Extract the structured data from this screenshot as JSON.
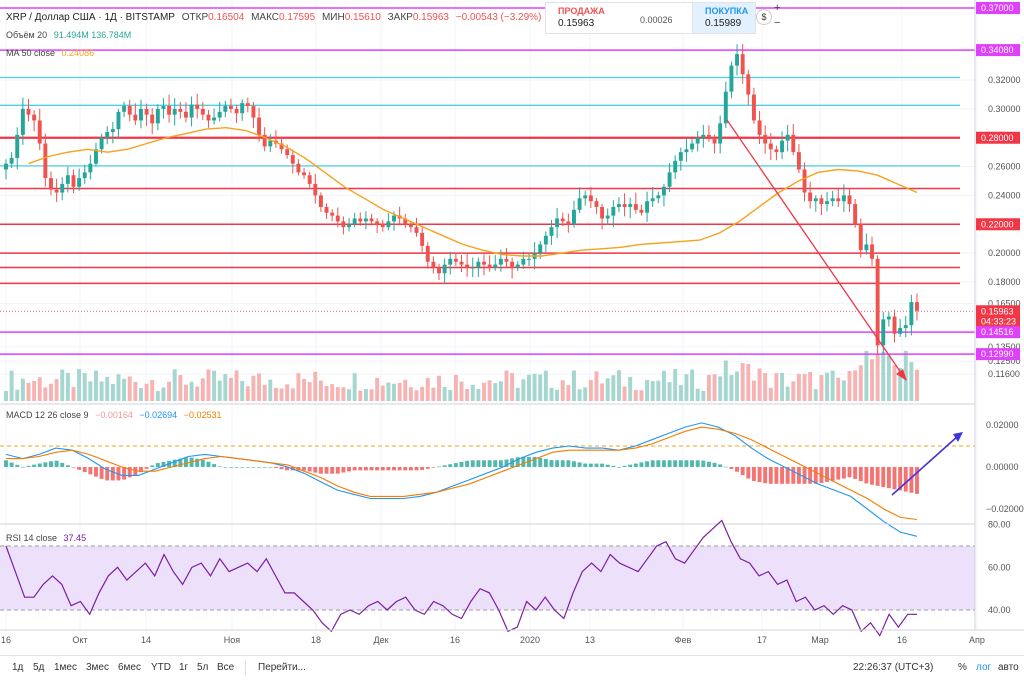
{
  "header": {
    "symbol": "XRP / Доллар США · 1Д · BITSTAMP",
    "open_label": "ОТКР",
    "open": "0.16504",
    "high_label": "МАКС",
    "high": "0.17595",
    "low_label": "МИН",
    "low": "0.15610",
    "close_label": "ЗАКР",
    "close": "0.15963",
    "change": "−0.00543 (−3.29%)"
  },
  "trade": {
    "sell_label": "ПРОДАЖА",
    "sell_price": "0.15963",
    "spread": "0.00026",
    "buy_label": "ПОКУПКА",
    "buy_price": "0.15989",
    "plus": "+",
    "minus": "−",
    "dollar_icon": "$"
  },
  "indicators": {
    "volume_legend": "Объём 20",
    "volume_vals": "91.494M 136.784M",
    "ma_legend": "MA 50 close",
    "ma_val": "0.24086",
    "macd_legend": "MACD 12 26 close 9",
    "macd_vals": [
      "−0.00164",
      "−0.02694",
      "−0.02531"
    ],
    "rsi_legend": "RSI 14 close",
    "rsi_val": "37.45"
  },
  "price_axis": {
    "ticks": [
      "0.32000",
      "0.30000",
      "0.26000",
      "0.24000",
      "0.20000",
      "0.18000",
      "0.16500",
      "0.13500",
      "0.12500",
      "0.11600"
    ],
    "tick_values": [
      0.32,
      0.3,
      0.26,
      0.24,
      0.2,
      0.18,
      0.165,
      0.135,
      0.125,
      0.116
    ],
    "level_labels": [
      {
        "text": "0.37000",
        "value": 0.37,
        "color": "#e040fb"
      },
      {
        "text": "0.34080",
        "value": 0.3408,
        "color": "#e040fb"
      },
      {
        "text": "0.28000",
        "value": 0.28,
        "color": "#f23645"
      },
      {
        "text": "0.22000",
        "value": 0.22,
        "color": "#f23645"
      },
      {
        "text": "0.15963",
        "value": 0.15963,
        "color": "#f23645"
      },
      {
        "text": "04:33:23",
        "value": 0.1525,
        "color": "#f23645"
      },
      {
        "text": "0.14516",
        "value": 0.14516,
        "color": "#e040fb"
      },
      {
        "text": "0.12990",
        "value": 0.1299,
        "color": "#e040fb"
      }
    ]
  },
  "macd_axis": {
    "ticks": [
      "0.02000",
      "0.00000",
      "−0.02000"
    ],
    "tick_values": [
      0.02,
      0,
      -0.02
    ]
  },
  "rsi_axis": {
    "ticks": [
      "80.00",
      "60.00",
      "40.00"
    ],
    "tick_values": [
      80,
      60,
      40
    ]
  },
  "time_axis": {
    "labels": [
      "16",
      "Окт",
      "14",
      "Ноя",
      "18",
      "Дек",
      "16",
      "2020",
      "13",
      "Фев",
      "17",
      "Мар",
      "16",
      "Апр"
    ]
  },
  "bottom": {
    "timeframes": [
      "1д",
      "5д",
      "1мес",
      "3мес",
      "6мес",
      "YTD",
      "1г",
      "5л",
      "Все"
    ],
    "goto": "Перейти...",
    "clock": "22:26:37 (UTC+3)",
    "percent": "%",
    "log": "лог",
    "auto": "авто"
  },
  "chart_data": {
    "type": "candlestick",
    "title": "XRP / Доллар США · 1Д · BITSTAMP",
    "x_range": [
      "2019-09-16",
      "2020-03-23"
    ],
    "price_closes": [
      0.262,
      0.266,
      0.282,
      0.3,
      0.296,
      0.292,
      0.276,
      0.252,
      0.244,
      0.242,
      0.248,
      0.254,
      0.246,
      0.252,
      0.256,
      0.262,
      0.272,
      0.28,
      0.284,
      0.286,
      0.298,
      0.302,
      0.296,
      0.292,
      0.3,
      0.296,
      0.29,
      0.3,
      0.302,
      0.296,
      0.3,
      0.298,
      0.294,
      0.303,
      0.3,
      0.296,
      0.292,
      0.294,
      0.298,
      0.302,
      0.3,
      0.297,
      0.304,
      0.302,
      0.294,
      0.282,
      0.274,
      0.278,
      0.276,
      0.272,
      0.268,
      0.262,
      0.256,
      0.254,
      0.248,
      0.24,
      0.232,
      0.228,
      0.226,
      0.222,
      0.218,
      0.22,
      0.224,
      0.222,
      0.224,
      0.222,
      0.22,
      0.218,
      0.222,
      0.226,
      0.224,
      0.22,
      0.218,
      0.214,
      0.205,
      0.194,
      0.19,
      0.186,
      0.192,
      0.196,
      0.194,
      0.192,
      0.19,
      0.19,
      0.194,
      0.192,
      0.19,
      0.192,
      0.196,
      0.194,
      0.19,
      0.192,
      0.196,
      0.196,
      0.2,
      0.206,
      0.212,
      0.218,
      0.224,
      0.222,
      0.22,
      0.23,
      0.238,
      0.24,
      0.236,
      0.232,
      0.224,
      0.226,
      0.232,
      0.234,
      0.232,
      0.234,
      0.23,
      0.228,
      0.236,
      0.238,
      0.24,
      0.246,
      0.256,
      0.264,
      0.27,
      0.272,
      0.276,
      0.28,
      0.282,
      0.28,
      0.276,
      0.29,
      0.312,
      0.33,
      0.338,
      0.324,
      0.31,
      0.292,
      0.282,
      0.276,
      0.272,
      0.27,
      0.278,
      0.282,
      0.27,
      0.258,
      0.242,
      0.236,
      0.238,
      0.234,
      0.236,
      0.238,
      0.236,
      0.24,
      0.234,
      0.22,
      0.202,
      0.206,
      0.196,
      0.136,
      0.154,
      0.156,
      0.144,
      0.148,
      0.15,
      0.166,
      0.16
    ],
    "ma50_start": [
      0.262,
      0.267,
      0.27,
      0.272,
      0.27,
      0.272,
      0.276,
      0.28,
      0.283,
      0.286,
      0.287,
      0.285,
      0.28,
      0.274,
      0.266,
      0.256,
      0.246,
      0.238,
      0.23,
      0.224,
      0.218,
      0.212,
      0.206,
      0.202,
      0.199,
      0.198,
      0.198,
      0.2,
      0.202,
      0.203,
      0.204,
      0.206,
      0.207,
      0.208,
      0.209,
      0.214,
      0.222,
      0.232,
      0.242,
      0.25,
      0.256,
      0.258,
      0.257,
      0.254,
      0.248,
      0.242
    ],
    "ylim": [
      0.112,
      0.372
    ],
    "macd_line": [
      0.006,
      0.004,
      0.006,
      0.009,
      0.008,
      0.004,
      -0.001,
      -0.004,
      -0.004,
      -0.001,
      0.002,
      0.005,
      0.006,
      0.005,
      0.004,
      0.003,
      0.002,
      0.0,
      -0.003,
      -0.007,
      -0.011,
      -0.013,
      -0.015,
      -0.015,
      -0.015,
      -0.014,
      -0.012,
      -0.009,
      -0.006,
      -0.003,
      0.0,
      0.004,
      0.007,
      0.009,
      0.01,
      0.009,
      0.009,
      0.008,
      0.01,
      0.013,
      0.016,
      0.019,
      0.021,
      0.019,
      0.015,
      0.009,
      0.004,
      0.0,
      -0.004,
      -0.008,
      -0.011,
      -0.014,
      -0.02,
      -0.026,
      -0.031,
      -0.033
    ],
    "macd_signal": [
      0.004,
      0.004,
      0.005,
      0.007,
      0.008,
      0.006,
      0.003,
      0.0,
      -0.002,
      -0.002,
      0.0,
      0.002,
      0.004,
      0.005,
      0.004,
      0.003,
      0.002,
      0.001,
      -0.002,
      -0.005,
      -0.009,
      -0.012,
      -0.014,
      -0.014,
      -0.014,
      -0.013,
      -0.012,
      -0.01,
      -0.008,
      -0.005,
      -0.002,
      0.001,
      0.004,
      0.007,
      0.008,
      0.008,
      0.008,
      0.008,
      0.009,
      0.011,
      0.014,
      0.017,
      0.019,
      0.018,
      0.016,
      0.013,
      0.009,
      0.005,
      0.001,
      -0.003,
      -0.007,
      -0.011,
      -0.015,
      -0.02,
      -0.024,
      -0.025
    ],
    "rsi": [
      70,
      58,
      46,
      46,
      52,
      56,
      52,
      42,
      44,
      38,
      48,
      56,
      60,
      54,
      58,
      62,
      56,
      66,
      58,
      52,
      60,
      62,
      56,
      64,
      58,
      60,
      62,
      58,
      64,
      56,
      48,
      48,
      44,
      40,
      34,
      30,
      38,
      40,
      38,
      42,
      44,
      40,
      44,
      46,
      40,
      38,
      44,
      42,
      38,
      36,
      44,
      50,
      48,
      40,
      30,
      32,
      44,
      40,
      46,
      40,
      36,
      48,
      58,
      62,
      58,
      66,
      62,
      60,
      58,
      64,
      70,
      72,
      64,
      62,
      68,
      74,
      78,
      82,
      72,
      64,
      62,
      56,
      58,
      52,
      54,
      44,
      46,
      40,
      42,
      38,
      42,
      40,
      30,
      34,
      28,
      38,
      32,
      38,
      38
    ]
  }
}
